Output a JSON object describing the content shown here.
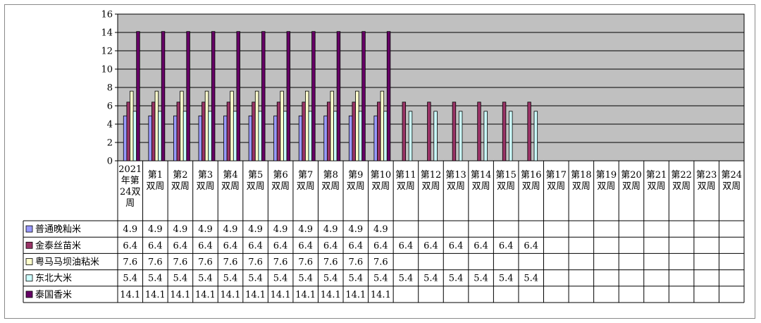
{
  "chart_data": {
    "type": "bar",
    "title": "",
    "xlabel": "",
    "ylabel": "",
    "ylim": [
      0,
      16
    ],
    "yticks": [
      0,
      2,
      4,
      6,
      8,
      10,
      12,
      14,
      16
    ],
    "grid": true,
    "legend": "data-table-left",
    "plot_background": "#c0c0c0",
    "categories": [
      [
        "2021",
        "年第",
        "24双",
        "周"
      ],
      [
        "第1",
        "双周"
      ],
      [
        "第2",
        "双周"
      ],
      [
        "第3",
        "双周"
      ],
      [
        "第4",
        "双周"
      ],
      [
        "第5",
        "双周"
      ],
      [
        "第6",
        "双周"
      ],
      [
        "第7",
        "双周"
      ],
      [
        "第8",
        "双周"
      ],
      [
        "第9",
        "双周"
      ],
      [
        "第10",
        "双周"
      ],
      [
        "第11",
        "双周"
      ],
      [
        "第12",
        "双周"
      ],
      [
        "第13",
        "双周"
      ],
      [
        "第14",
        "双周"
      ],
      [
        "第15",
        "双周"
      ],
      [
        "第16",
        "双周"
      ],
      [
        "第17",
        "双周"
      ],
      [
        "第18",
        "双周"
      ],
      [
        "第19",
        "双周"
      ],
      [
        "第20",
        "双周"
      ],
      [
        "第21",
        "双周"
      ],
      [
        "第22",
        "双周"
      ],
      [
        "第23",
        "双周"
      ],
      [
        "第24",
        "双周"
      ]
    ],
    "series": [
      {
        "name": "普通晚籼米",
        "color": "#9999ff",
        "values": [
          4.9,
          4.9,
          4.9,
          4.9,
          4.9,
          4.9,
          4.9,
          4.9,
          4.9,
          4.9,
          4.9,
          null,
          null,
          null,
          null,
          null,
          null,
          null,
          null,
          null,
          null,
          null,
          null,
          null,
          null
        ]
      },
      {
        "name": "金泰丝苗米",
        "color": "#993366",
        "values": [
          6.4,
          6.4,
          6.4,
          6.4,
          6.4,
          6.4,
          6.4,
          6.4,
          6.4,
          6.4,
          6.4,
          6.4,
          6.4,
          6.4,
          6.4,
          6.4,
          6.4,
          null,
          null,
          null,
          null,
          null,
          null,
          null,
          null
        ]
      },
      {
        "name": "粤马马坝油粘米",
        "color": "#ffffcc",
        "values": [
          7.6,
          7.6,
          7.6,
          7.6,
          7.6,
          7.6,
          7.6,
          7.6,
          7.6,
          7.6,
          7.6,
          null,
          null,
          null,
          null,
          null,
          null,
          null,
          null,
          null,
          null,
          null,
          null,
          null,
          null
        ]
      },
      {
        "name": "东北大米",
        "color": "#ccffff",
        "values": [
          5.4,
          5.4,
          5.4,
          5.4,
          5.4,
          5.4,
          5.4,
          5.4,
          5.4,
          5.4,
          5.4,
          5.4,
          5.4,
          5.4,
          5.4,
          5.4,
          5.4,
          null,
          null,
          null,
          null,
          null,
          null,
          null,
          null
        ]
      },
      {
        "name": "泰国香米",
        "color": "#660066",
        "values": [
          14.1,
          14.1,
          14.1,
          14.1,
          14.1,
          14.1,
          14.1,
          14.1,
          14.1,
          14.1,
          14.1,
          null,
          null,
          null,
          null,
          null,
          null,
          null,
          null,
          null,
          null,
          null,
          null,
          null,
          null
        ]
      }
    ]
  }
}
